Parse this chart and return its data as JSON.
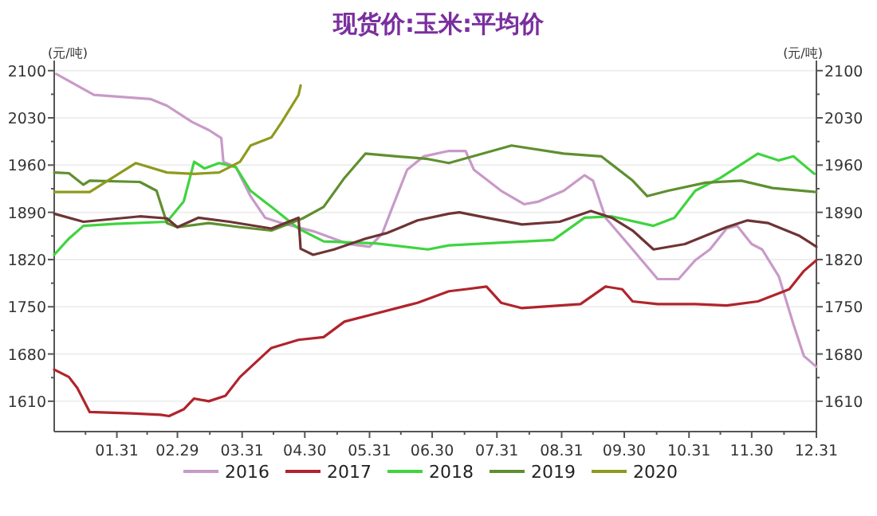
{
  "chart_data": {
    "type": "line",
    "title": "现货价:玉米:平均价",
    "ylabel": "(元/吨)",
    "y2label": "(元/吨)",
    "xlim": [
      "--01-01",
      "--12-31"
    ],
    "xticks": [
      {
        "value": "--01-31",
        "label": "01.31"
      },
      {
        "value": "--02-29",
        "label": "02.29"
      },
      {
        "value": "--03-31",
        "label": "03.31"
      },
      {
        "value": "--04-30",
        "label": "04.30"
      },
      {
        "value": "--05-31",
        "label": "05.31"
      },
      {
        "value": "--06-30",
        "label": "06.30"
      },
      {
        "value": "--07-31",
        "label": "07.31"
      },
      {
        "value": "--08-31",
        "label": "08.31"
      },
      {
        "value": "--09-30",
        "label": "09.30"
      },
      {
        "value": "--10-31",
        "label": "10.31"
      },
      {
        "value": "--11-30",
        "label": "11.30"
      },
      {
        "value": "--12-31",
        "label": "12.31"
      }
    ],
    "ylim": [
      1565,
      2115
    ],
    "yticks": [
      1610,
      1680,
      1750,
      1820,
      1890,
      1960,
      2030,
      2100
    ],
    "y2lim": [
      1565,
      2115
    ],
    "y2ticks": [
      1610,
      1680,
      1750,
      1820,
      1890,
      1960,
      2030,
      2100
    ],
    "grid": "y",
    "legend": "bottom",
    "line_style": "solid",
    "series": [
      {
        "name": "2016",
        "color": "#c89ac8",
        "x": [
          "--01-02",
          "--01-20",
          "--02-16",
          "--02-24",
          "--03-07",
          "--03-15",
          "--03-21",
          "--03-22",
          "--03-28",
          "--04-04",
          "--04-11",
          "--04-19",
          "--05-04",
          "--05-21",
          "--05-31",
          "--06-06",
          "--06-11",
          "--06-18",
          "--06-26",
          "--07-08",
          "--07-16",
          "--07-20",
          "--08-02",
          "--08-13",
          "--08-20",
          "--09-01",
          "--09-11",
          "--09-15",
          "--09-21",
          "--10-04",
          "--10-16",
          "--10-26",
          "--11-03",
          "--11-10",
          "--11-18",
          "--11-23",
          "--11-30",
          "--12-05",
          "--12-13",
          "--12-20",
          "--12-25",
          "--12-31"
        ],
        "values": [
          2095,
          2064,
          2058,
          2048,
          2024,
          2012,
          2000,
          1965,
          1957,
          1914,
          1882,
          1874,
          1862,
          1843,
          1839,
          1858,
          1898,
          1953,
          1973,
          1981,
          1981,
          1953,
          1922,
          1902,
          1906,
          1922,
          1945,
          1937,
          1882,
          1835,
          1791,
          1791,
          1819,
          1835,
          1866,
          1870,
          1843,
          1835,
          1795,
          1724,
          1677,
          1661
        ]
      },
      {
        "name": "2017",
        "color": "#b0242c",
        "x": [
          "--01-01",
          "--01-08",
          "--01-12",
          "--01-18",
          "--02-07",
          "--02-21",
          "--02-25",
          "--03-03",
          "--03-08",
          "--03-15",
          "--03-23",
          "--03-30",
          "--04-07",
          "--04-14",
          "--04-27",
          "--05-09",
          "--05-19",
          "--06-03",
          "--06-23",
          "--07-08",
          "--07-16",
          "--07-26",
          "--08-02",
          "--08-12",
          "--09-09",
          "--09-21",
          "--09-29",
          "--10-04",
          "--10-16",
          "--11-03",
          "--11-18",
          "--12-03",
          "--12-18",
          "--12-25",
          "--12-31"
        ],
        "values": [
          1657,
          1646,
          1630,
          1594,
          1592,
          1590,
          1588,
          1598,
          1614,
          1610,
          1618,
          1646,
          1669,
          1689,
          1701,
          1705,
          1728,
          1740,
          1756,
          1773,
          1776,
          1780,
          1756,
          1748,
          1754,
          1780,
          1776,
          1758,
          1754,
          1754,
          1752,
          1758,
          1776,
          1803,
          1819
        ]
      },
      {
        "name": "2018",
        "color": "#3fd43f",
        "x": [
          "--01-01",
          "--01-08",
          "--01-15",
          "--01-30",
          "--02-24",
          "--03-03",
          "--03-08",
          "--03-13",
          "--03-20",
          "--03-28",
          "--04-04",
          "--04-14",
          "--04-27",
          "--05-09",
          "--06-03",
          "--06-28",
          "--07-08",
          "--07-26",
          "--08-27",
          "--09-11",
          "--09-24",
          "--10-14",
          "--10-24",
          "--11-03",
          "--11-15",
          "--12-03",
          "--12-13",
          "--12-20",
          "--12-30"
        ],
        "values": [
          1827,
          1851,
          1870,
          1873,
          1876,
          1906,
          1965,
          1955,
          1963,
          1957,
          1922,
          1898,
          1866,
          1847,
          1844,
          1835,
          1841,
          1844,
          1849,
          1882,
          1884,
          1870,
          1882,
          1922,
          1941,
          1977,
          1967,
          1973,
          1947
        ]
      },
      {
        "name": "2019",
        "color": "#5f8f2f",
        "x": [
          "--01-01",
          "--01-08",
          "--01-15",
          "--01-18",
          "--02-11",
          "--02-19",
          "--02-24",
          "--02-29",
          "--03-15",
          "--03-30",
          "--04-14",
          "--04-29",
          "--05-09",
          "--05-19",
          "--05-29",
          "--06-13",
          "--06-28",
          "--07-08",
          "--08-07",
          "--09-01",
          "--09-19",
          "--10-04",
          "--10-11",
          "--10-21",
          "--11-08",
          "--11-25",
          "--12-10",
          "--12-31"
        ],
        "values": [
          1949,
          1948,
          1931,
          1937,
          1935,
          1922,
          1874,
          1868,
          1874,
          1868,
          1863,
          1881,
          1898,
          1941,
          1977,
          1973,
          1969,
          1963,
          1989,
          1977,
          1973,
          1937,
          1914,
          1922,
          1934,
          1937,
          1926,
          1920
        ]
      },
      {
        "name": "2020",
        "color": "#8f9a1e",
        "x": [
          "--01-01",
          "--01-18",
          "--02-09",
          "--02-24",
          "--03-08",
          "--03-20",
          "--03-30",
          "--04-04",
          "--04-14",
          "--04-19",
          "--04-27",
          "--04-28"
        ],
        "values": [
          1920,
          1920,
          1963,
          1949,
          1947,
          1949,
          1965,
          1989,
          2001,
          2024,
          2064,
          2078
        ]
      },
      {
        "color": "#6e3434",
        "x": [
          "--01-01",
          "--01-15",
          "--02-11",
          "--02-24",
          "--02-29",
          "--03-10",
          "--03-25",
          "--04-14",
          "--04-27",
          "--04-28",
          "--05-04",
          "--05-14",
          "--05-29",
          "--06-08",
          "--06-23",
          "--07-08",
          "--07-13",
          "--07-26",
          "--08-12",
          "--08-30",
          "--09-14",
          "--09-24",
          "--10-04",
          "--10-14",
          "--10-29",
          "--11-18",
          "--11-28",
          "--12-08",
          "--12-23",
          "--12-31"
        ],
        "values": [
          1888,
          1876,
          1884,
          1881,
          1868,
          1882,
          1876,
          1866,
          1882,
          1836,
          1827,
          1835,
          1851,
          1859,
          1878,
          1888,
          1890,
          1882,
          1872,
          1876,
          1892,
          1882,
          1863,
          1835,
          1843,
          1868,
          1878,
          1874,
          1855,
          1839
        ]
      }
    ]
  }
}
